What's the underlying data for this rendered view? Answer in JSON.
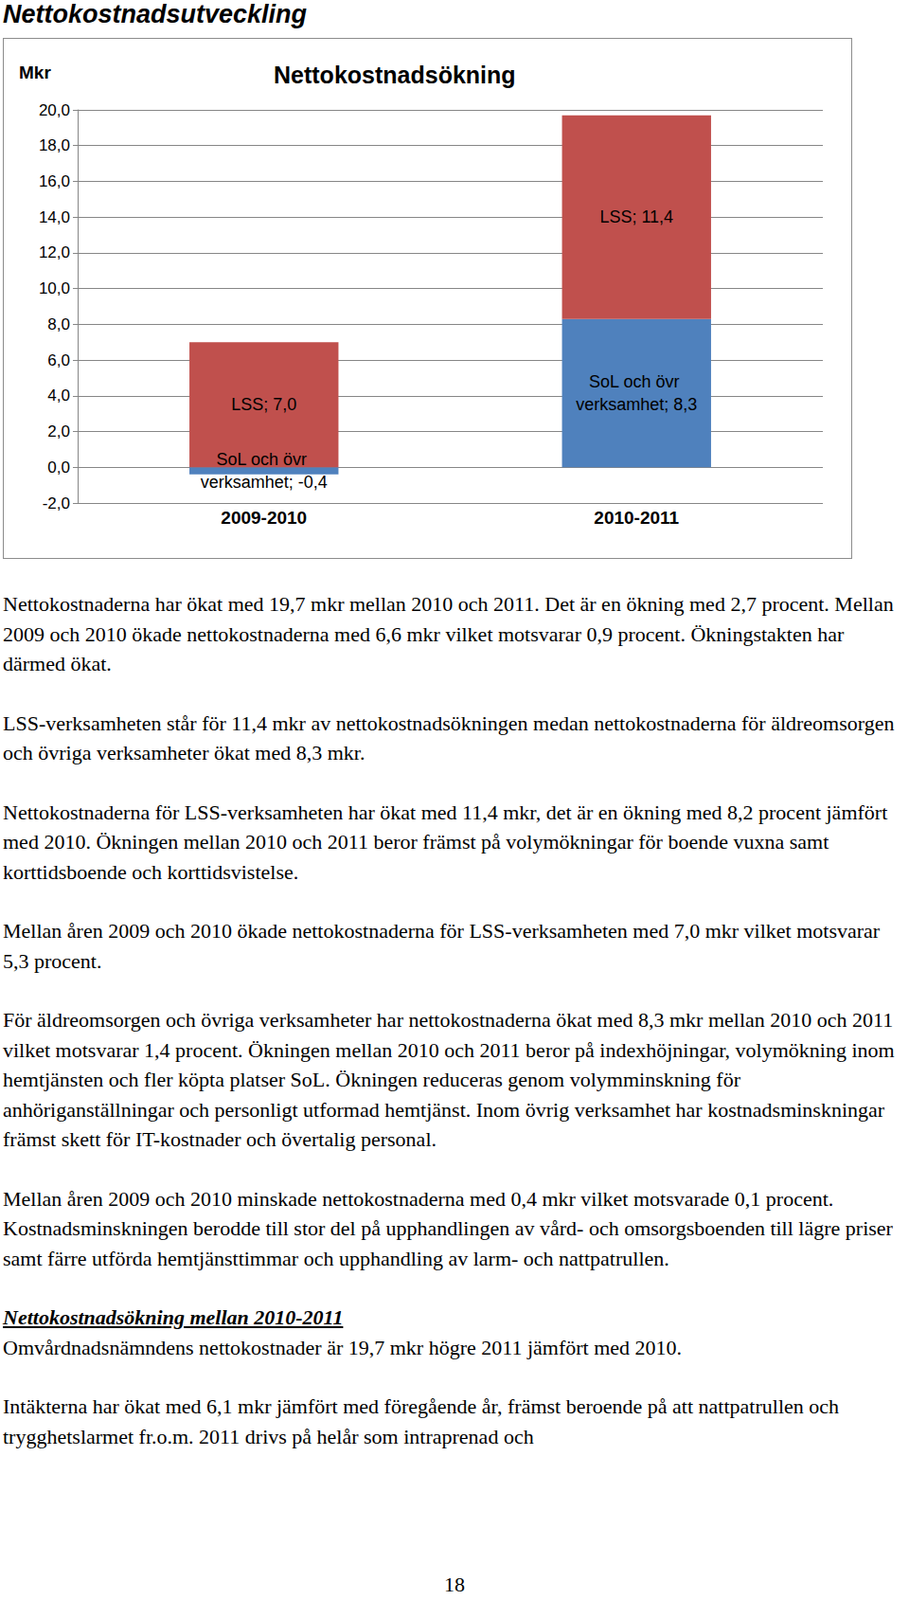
{
  "header": {
    "title": "Nettokostnadsutveckling"
  },
  "chart_data": {
    "type": "bar",
    "title": "Nettokostnadsökning",
    "y_label": "Mkr",
    "categories": [
      "2009-2010",
      "2010-2011"
    ],
    "series": [
      {
        "name": "SoL och övr verksamhet",
        "color": "#4f81bd",
        "values": [
          -0.4,
          8.3
        ],
        "value_labels": [
          "SoL och övr verksamhet; -0,4",
          "SoL och övr verksamhet; 8,3"
        ]
      },
      {
        "name": "LSS",
        "color": "#c0504d",
        "values": [
          7.0,
          11.4
        ],
        "value_labels": [
          "LSS; 7,0",
          "LSS; 11,4"
        ]
      }
    ],
    "stacked": true,
    "data_labels": true,
    "grid": true,
    "ylim": [
      -2,
      20
    ],
    "yticks": [
      {
        "value": -2,
        "label": "-2,0"
      },
      {
        "value": 0,
        "label": "0,0"
      },
      {
        "value": 2,
        "label": "2,0"
      },
      {
        "value": 4,
        "label": "4,0"
      },
      {
        "value": 6,
        "label": "6,0"
      },
      {
        "value": 8,
        "label": "8,0"
      },
      {
        "value": 10,
        "label": "10,0"
      },
      {
        "value": 12,
        "label": "12,0"
      },
      {
        "value": 14,
        "label": "14,0"
      },
      {
        "value": 16,
        "label": "16,0"
      },
      {
        "value": 18,
        "label": "18,0"
      },
      {
        "value": 20,
        "label": "20,0"
      }
    ]
  },
  "body": [
    {
      "paragraphs": [
        "Nettokostnaderna har ökat med 19,7 mkr mellan 2010 och 2011. Det är en ökning med 2,7 procent. Mellan 2009 och 2010 ökade nettokostnaderna med 6,6 mkr vilket motsvarar 0,9 procent. Ökningstakten har därmed ökat.",
        "LSS-verksamheten står för 11,4 mkr av nettokostnadsökningen medan nettokostnaderna för äldreomsorgen och övriga verksamheter ökat med 8,3 mkr.",
        "Nettokostnaderna för LSS-verksamheten har ökat med 11,4 mkr, det är en ökning med 8,2 procent jämfört med 2010. Ökningen mellan 2010 och 2011 beror främst på volymökningar för boende vuxna samt korttidsboende och korttidsvistelse.",
        "Mellan åren 2009 och 2010 ökade nettokostnaderna för LSS-verksamheten med 7,0 mkr vilket motsvarar 5,3 procent.",
        "För äldreomsorgen och övriga verksamheter har nettokostnaderna ökat med 8,3 mkr mellan 2010 och 2011 vilket motsvarar 1,4 procent. Ökningen mellan 2010 och 2011 beror på indexhöjningar, volymökning inom hemtjänsten och fler köpta platser SoL. Ökningen reduceras genom volymminskning för anhöriganställningar och personligt utformad hemtjänst. Inom övrig verksamhet har kostnadsminskningar främst skett för IT-kostnader och övertalig personal.",
        "Mellan åren 2009 och 2010 minskade nettokostnaderna med 0,4 mkr vilket motsvarade 0,1 procent. Kostnadsminskningen berodde till stor del på upphandlingen av vård- och omsorgsboenden till lägre priser samt färre utförda hemtjänsttimmar och upphandling av larm- och nattpatrullen."
      ]
    },
    {
      "heading": "Nettokostnadsökning mellan 2010-2011",
      "paragraphs": [
        "Omvårdnadsnämndens nettokostnader är 19,7 mkr högre 2011 jämfört med 2010.",
        "Intäkterna har ökat med 6,1 mkr jämfört med föregående år, främst beroende på att nattpatrullen och trygghetslarmet fr.o.m. 2011 drivs på helår som intraprenad och"
      ]
    }
  ],
  "page_number": "18"
}
